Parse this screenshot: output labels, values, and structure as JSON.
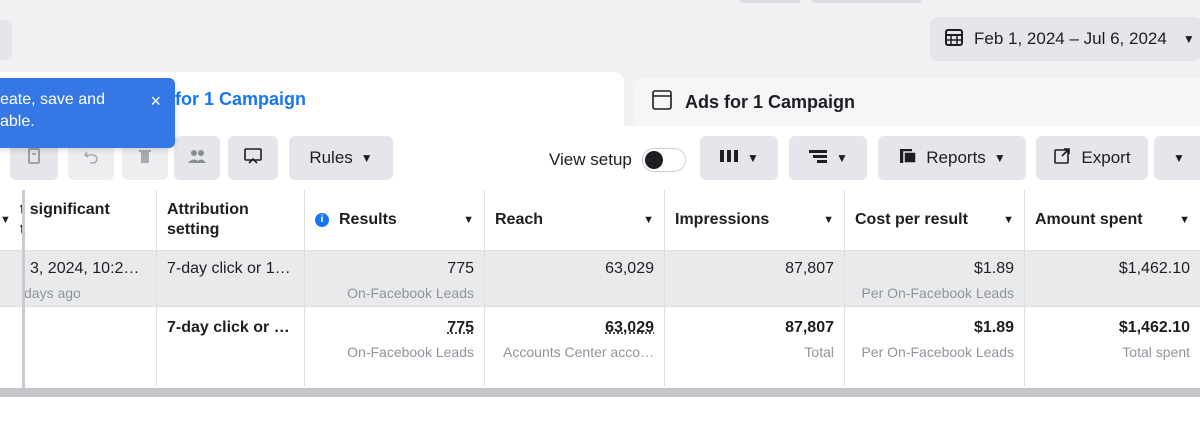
{
  "header": {
    "date_range": "Feb 1, 2024 – Jul 6, 2024"
  },
  "tabs": {
    "active_label": "for 1 Campaign",
    "inactive_label": "Ads for 1 Campaign"
  },
  "toast": {
    "line1": "eate, save and",
    "line2": "able.",
    "close": "×"
  },
  "toolbar": {
    "rules": "Rules",
    "view_setup": "View setup",
    "reports": "Reports",
    "export": "Export"
  },
  "table": {
    "headers": {
      "col0_line1": "t significant",
      "col0_line2": "t",
      "attribution_line1": "Attribution",
      "attribution_line2": "setting",
      "results": "Results",
      "reach": "Reach",
      "impressions": "Impressions",
      "cost_per_result": "Cost per result",
      "amount_spent": "Amount spent"
    },
    "row1": {
      "col0_main": "3, 2024, 10:2…",
      "col0_sub": "days ago",
      "attribution": "7-day click or 1…",
      "results": "775",
      "results_sub": "On-Facebook Leads",
      "reach": "63,029",
      "impressions": "87,807",
      "cost_per_result": "$1.89",
      "cost_sub": "Per On-Facebook Leads",
      "amount_spent": "$1,462.10"
    },
    "totals": {
      "attribution": "7-day click or …",
      "results": "775",
      "results_sub": "On-Facebook Leads",
      "reach": "63,029",
      "reach_sub": "Accounts Center acco…",
      "impressions": "87,807",
      "impressions_sub": "Total",
      "cost_per_result": "$1.89",
      "cost_sub": "Per On-Facebook Leads",
      "amount_spent": "$1,462.10",
      "amount_sub": "Total spent"
    }
  },
  "colors": {
    "accent": "#1877f2",
    "toast_bg": "#3578e5",
    "row_highlight": "#e9eaec"
  }
}
